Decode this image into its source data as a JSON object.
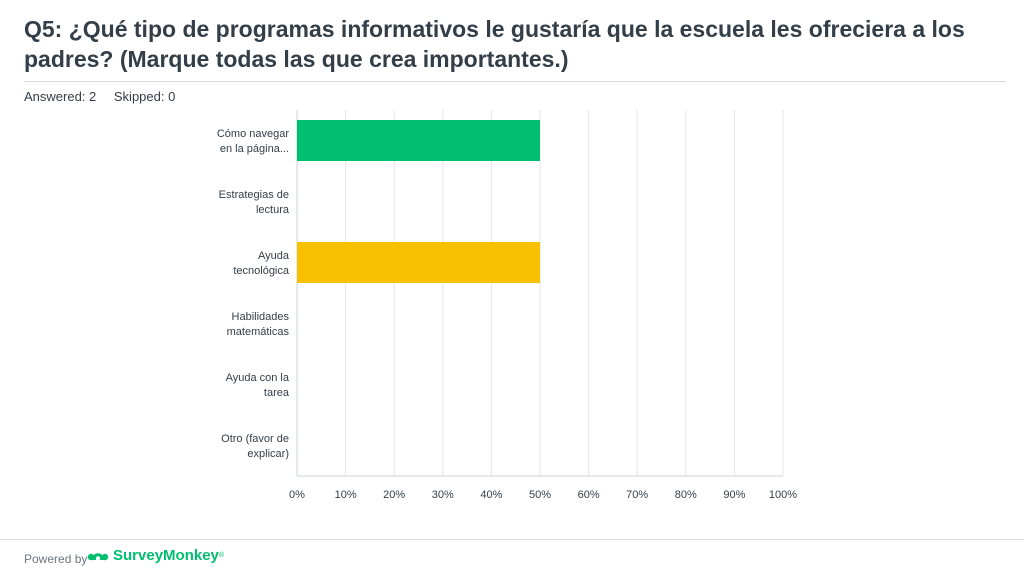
{
  "title": "Q5: ¿Qué tipo de programas informativos le gustaría que la escuela les ofreciera a los padres? (Marque todas las que crea importantes.)",
  "answered": "Answered: 2",
  "skipped": "Skipped: 0",
  "footer": {
    "powered_by": "Powered by",
    "brand": "SurveyMonkey",
    "tm": "®",
    "brand_color": "#00bf6f"
  },
  "chart_data": {
    "type": "bar",
    "orientation": "horizontal",
    "categories": [
      [
        "Cómo navegar",
        "en la página..."
      ],
      [
        "Estrategias de",
        "lectura"
      ],
      [
        "Ayuda",
        "tecnológica"
      ],
      [
        "Habilidades",
        "matemáticas"
      ],
      [
        "Ayuda con la",
        "tarea"
      ],
      [
        "Otro (favor de",
        "explicar)"
      ]
    ],
    "values": [
      50,
      0,
      50,
      0,
      0,
      0
    ],
    "colors": [
      "#00bf6f",
      "#00bf6f",
      "#f7c000",
      "#f7c000",
      "#f7c000",
      "#f7c000"
    ],
    "xticks": [
      "0%",
      "10%",
      "20%",
      "30%",
      "40%",
      "50%",
      "60%",
      "70%",
      "80%",
      "90%",
      "100%"
    ],
    "xlim": [
      0,
      100
    ],
    "grid": true
  }
}
